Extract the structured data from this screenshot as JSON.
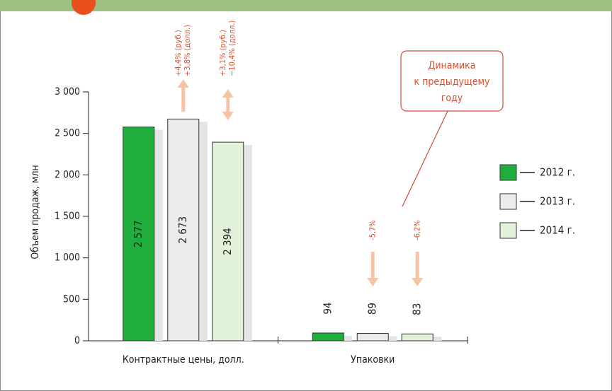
{
  "chart_data": {
    "type": "bar",
    "y_label": "Объем продаж, млн",
    "categories": [
      "Контрактные цены, долл.",
      "Упаковки"
    ],
    "series": [
      {
        "name": "2012 г.",
        "color": "#1fae3c",
        "values": [
          2577,
          94
        ],
        "value_labels": [
          "2 577",
          "94"
        ]
      },
      {
        "name": "2013 г.",
        "color": "#ebebeb",
        "values": [
          2673,
          89
        ],
        "value_labels": [
          "2 673",
          "89"
        ],
        "changes": [
          {
            "lines": [
              "+4,4% (руб.)",
              "+3,8% (долл.)"
            ],
            "arrow": "up"
          },
          {
            "lines": [
              "-5,7%"
            ],
            "arrow": "down"
          }
        ]
      },
      {
        "name": "2014 г.",
        "color": "#e2f2da",
        "values": [
          2394,
          83
        ],
        "value_labels": [
          "2 394",
          "83"
        ],
        "changes": [
          {
            "lines": [
              "+3,1% (руб.)",
              "−10,4% (долл.)"
            ],
            "arrow": "both"
          },
          {
            "lines": [
              "-6,2%"
            ],
            "arrow": "down"
          }
        ]
      }
    ],
    "callout": [
      "Динамика",
      "к предыдущему",
      "году"
    ],
    "ylim": [
      0,
      3000
    ],
    "yticks": [
      0,
      500,
      {
        "value": 1000,
        "label": "1 000"
      },
      {
        "value": 1500,
        "label": "1 500"
      },
      {
        "value": 2000,
        "label": "2 000"
      },
      {
        "value": 2500,
        "label": "2 500"
      },
      {
        "value": 3000,
        "label": "3 000"
      }
    ],
    "legend": "right"
  }
}
